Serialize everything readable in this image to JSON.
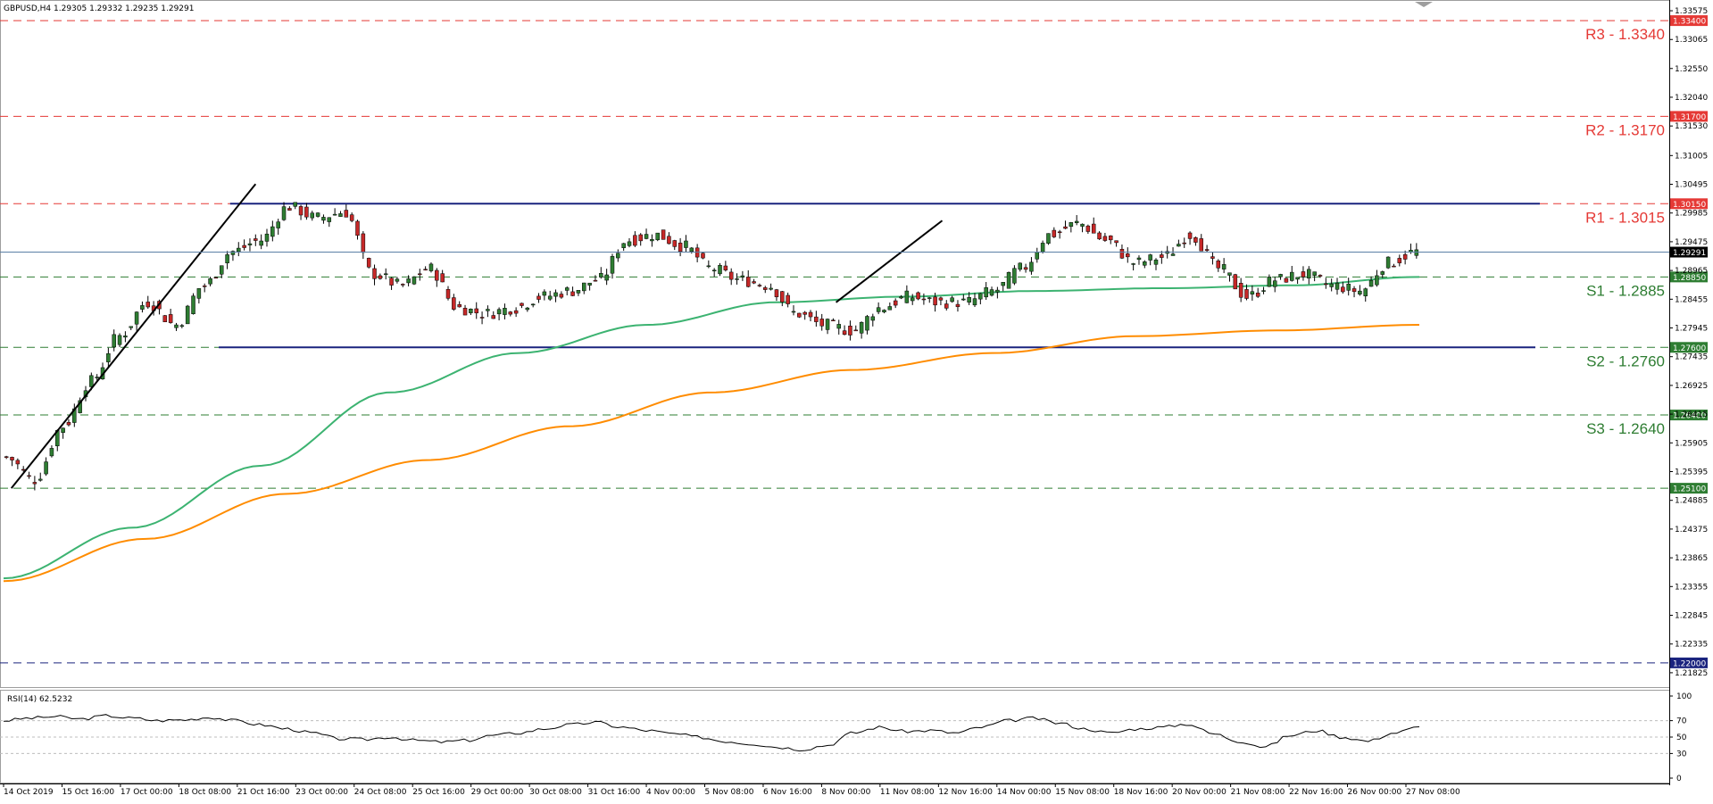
{
  "header": {
    "main": "GBPUSD,H4  1.29305 1.29332 1.29235 1.29291",
    "rsi": "RSI(14) 62.5232"
  },
  "colors": {
    "bull": "#2e7d32",
    "bear": "#c62828",
    "resistance": "#e53935",
    "support": "#2e7d32",
    "channel": "#1a237e",
    "ma_fast": "#3cb371",
    "ma_slow": "#ff8c00",
    "current_price_line": "#5b7fa6"
  },
  "chart_data": [
    {
      "type": "candlestick",
      "symbol": "GBPUSD",
      "timeframe": "H4",
      "ylim": [
        1.2157,
        1.3375
      ],
      "y_ticks": [
        "1.33575",
        "1.33065",
        "1.32550",
        "1.32040",
        "1.31530",
        "1.31005",
        "1.30495",
        "1.29985",
        "1.29475",
        "1.28965",
        "1.28455",
        "1.27945",
        "1.27435",
        "1.26925",
        "1.26415",
        "1.25905",
        "1.25395",
        "1.24885",
        "1.24375",
        "1.23865",
        "1.23355",
        "1.22845",
        "1.22335",
        "1.21825"
      ],
      "x_ticks": [
        "14 Oct 2019",
        "15 Oct 16:00",
        "17 Oct 00:00",
        "18 Oct 08:00",
        "21 Oct 16:00",
        "23 Oct 00:00",
        "24 Oct 08:00",
        "25 Oct 16:00",
        "29 Oct 00:00",
        "30 Oct 08:00",
        "31 Oct 16:00",
        "4 Nov 00:00",
        "5 Nov 08:00",
        "6 Nov 16:00",
        "8 Nov 00:00",
        "11 Nov 08:00",
        "12 Nov 16:00",
        "14 Nov 00:00",
        "15 Nov 08:00",
        "18 Nov 16:00",
        "20 Nov 00:00",
        "21 Nov 08:00",
        "22 Nov 16:00",
        "26 Nov 00:00",
        "27 Nov 08:00"
      ],
      "current_price": "1.29291",
      "price_anchors": [
        1.2565,
        1.2525,
        1.262,
        1.27,
        1.278,
        1.284,
        1.28,
        1.287,
        1.293,
        1.295,
        1.301,
        1.299,
        1.3,
        1.289,
        1.287,
        1.29,
        1.283,
        1.282,
        1.283,
        1.285,
        1.286,
        1.288,
        1.295,
        1.296,
        1.294,
        1.29,
        1.288,
        1.287,
        1.282,
        1.28,
        1.279,
        1.283,
        1.285,
        1.284,
        1.284,
        1.286,
        1.29,
        1.296,
        1.298,
        1.295,
        1.291,
        1.292,
        1.296,
        1.29,
        1.285,
        1.288,
        1.289,
        1.287,
        1.286,
        1.291,
        1.293
      ],
      "ma_fast_anchors": [
        1.235,
        1.244,
        1.255,
        1.268,
        1.275,
        1.28,
        1.284,
        1.285,
        1.286,
        1.2865,
        1.287,
        1.2885
      ],
      "ma_slow_anchors": [
        1.2345,
        1.242,
        1.25,
        1.256,
        1.262,
        1.268,
        1.272,
        1.275,
        1.278,
        1.279,
        1.28
      ],
      "levels": [
        {
          "label": "R3 - 1.3340",
          "price": 1.334,
          "tag": "1.33400",
          "kind": "resistance"
        },
        {
          "label": "R2 - 1.3170",
          "price": 1.317,
          "tag": "1.31700",
          "kind": "resistance"
        },
        {
          "label": "R1 - 1.3015",
          "price": 1.3015,
          "tag": "1.30150",
          "kind": "resistance"
        },
        {
          "label": "S1 - 1.2885",
          "price": 1.2885,
          "tag": "1.28850",
          "kind": "support"
        },
        {
          "label": "S2 - 1.2760",
          "price": 1.276,
          "tag": "1.27600",
          "kind": "support"
        },
        {
          "label": "S3 - 1.2640",
          "price": 1.264,
          "tag": "1.26400",
          "kind": "support"
        },
        {
          "label": "",
          "price": 1.251,
          "tag": "1.25100",
          "kind": "support"
        },
        {
          "label": "",
          "price": 1.22,
          "tag": "1.22000",
          "kind": "blue"
        }
      ],
      "channel": {
        "upper": 1.3015,
        "lower": 1.276
      },
      "trendlines": [
        {
          "from": [
            0.0055,
            1.251
          ],
          "to": [
            0.178,
            1.305
          ]
        },
        {
          "from": [
            0.588,
            1.284
          ],
          "to": [
            0.663,
            1.2985
          ]
        }
      ]
    },
    {
      "type": "line",
      "name": "RSI(14)",
      "ylim": [
        0,
        100
      ],
      "y_ticks": [
        "100",
        "70",
        "50",
        "30",
        "0"
      ],
      "levels": [
        70,
        50,
        30
      ],
      "values": [
        70,
        73,
        75,
        72,
        76,
        73,
        70,
        71,
        74,
        70,
        65,
        60,
        55,
        48,
        47,
        50,
        46,
        44,
        46,
        52,
        55,
        60,
        65,
        68,
        62,
        58,
        54,
        50,
        45,
        42,
        38,
        35,
        40,
        55,
        62,
        57,
        58,
        55,
        62,
        70,
        73,
        67,
        60,
        55,
        60,
        62,
        66,
        54,
        45,
        38,
        52,
        58,
        50,
        45,
        55,
        62
      ]
    }
  ]
}
